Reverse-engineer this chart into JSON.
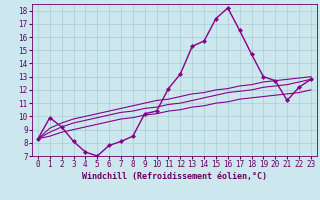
{
  "xlabel": "Windchill (Refroidissement éolien,°C)",
  "background_color": "#cce8ee",
  "grid_color": "#aaccd4",
  "line_color": "#880088",
  "xlim": [
    -0.5,
    23.5
  ],
  "ylim": [
    7,
    18.5
  ],
  "xticks": [
    0,
    1,
    2,
    3,
    4,
    5,
    6,
    7,
    8,
    9,
    10,
    11,
    12,
    13,
    14,
    15,
    16,
    17,
    18,
    19,
    20,
    21,
    22,
    23
  ],
  "yticks": [
    7,
    8,
    9,
    10,
    11,
    12,
    13,
    14,
    15,
    16,
    17,
    18
  ],
  "series_main": [
    8.3,
    9.9,
    9.2,
    8.1,
    7.3,
    7.0,
    7.8,
    8.1,
    8.5,
    10.2,
    10.4,
    12.1,
    13.2,
    15.3,
    15.7,
    17.4,
    18.2,
    16.5,
    14.7,
    13.0,
    12.7,
    11.2,
    12.2,
    12.8
  ],
  "series_trend1": [
    8.3,
    9.1,
    9.5,
    9.8,
    10.0,
    10.2,
    10.4,
    10.6,
    10.8,
    11.0,
    11.2,
    11.3,
    11.5,
    11.7,
    11.8,
    12.0,
    12.1,
    12.3,
    12.4,
    12.6,
    12.7,
    12.8,
    12.9,
    13.0
  ],
  "series_trend2": [
    8.3,
    8.8,
    9.2,
    9.5,
    9.7,
    9.9,
    10.1,
    10.3,
    10.4,
    10.6,
    10.7,
    10.9,
    11.0,
    11.2,
    11.4,
    11.6,
    11.8,
    11.9,
    12.0,
    12.2,
    12.3,
    12.4,
    12.6,
    12.8
  ],
  "series_trend3": [
    8.3,
    8.5,
    8.8,
    9.0,
    9.2,
    9.4,
    9.6,
    9.8,
    9.9,
    10.1,
    10.2,
    10.4,
    10.5,
    10.7,
    10.8,
    11.0,
    11.1,
    11.3,
    11.4,
    11.5,
    11.6,
    11.7,
    11.8,
    12.0
  ],
  "font_color": "#660066",
  "font_size": 5.5,
  "xlabel_size": 6.0
}
